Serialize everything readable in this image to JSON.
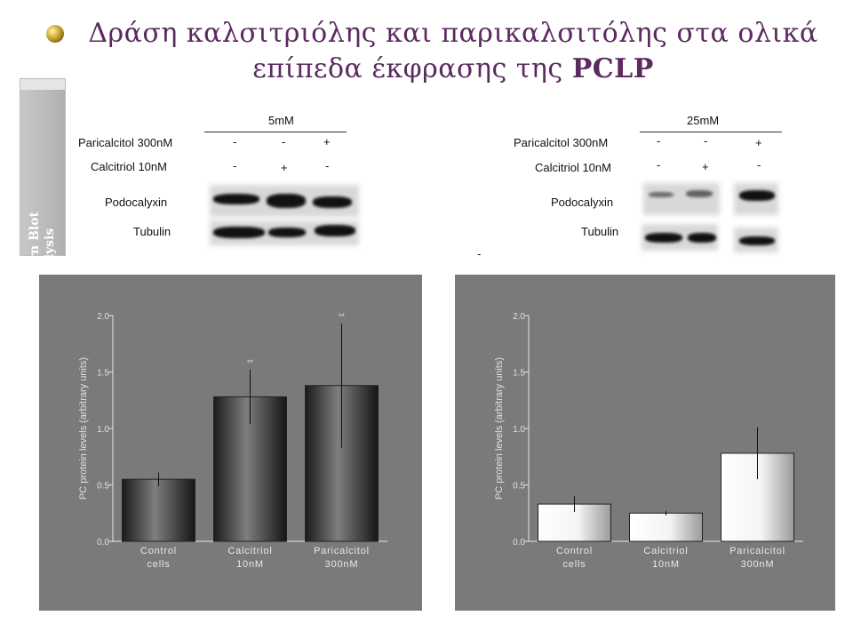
{
  "slide": {
    "title_line1": "Δράση καλσιτριόλης και παρικαλσιτόλης στα ολικά",
    "title_line2_pre": "επίπεδα έκφρασης της ",
    "title_line2_bold": "PCLP",
    "side_label_line1": "Western Blot",
    "side_label_line2": "Analysis",
    "colors": {
      "title": "#5b2a5e",
      "panel_bg": "#7a7a7a",
      "side_tab": "#b8b8b8"
    }
  },
  "blots": [
    {
      "concentration": "5mM",
      "rows": [
        {
          "label": "Paricalcitol 300nM",
          "signs": [
            "-",
            "-",
            "+"
          ]
        },
        {
          "label": "Calcitriol 10nM",
          "signs": [
            "-",
            "+",
            "-"
          ]
        }
      ],
      "bands": [
        "Podocalyxin",
        "Tubulin"
      ]
    },
    {
      "concentration": "25mM",
      "rows": [
        {
          "label": "Paricalcitol 300nM",
          "signs": [
            "-",
            "-",
            "+"
          ]
        },
        {
          "label": "Calcitriol 10nM",
          "signs": [
            "-",
            "+",
            "-"
          ]
        }
      ],
      "bands": [
        "Podocalyxin",
        "Tubulin"
      ],
      "stray_mark": "-"
    }
  ],
  "chart_data": [
    {
      "type": "bar",
      "categories": [
        [
          "Control",
          "cells"
        ],
        [
          "Calcitriol",
          "10nM"
        ],
        [
          "Paricalcitol",
          "300nM"
        ]
      ],
      "values": [
        0.55,
        1.28,
        1.38
      ],
      "errors": [
        0.06,
        0.24,
        0.55
      ],
      "annotations": [
        "",
        "**",
        "**"
      ],
      "ylabel": "PC protein levels (arbitrary units)",
      "ylim": [
        0,
        2.0
      ],
      "yticks": [
        "0.0",
        "0.5",
        "1.0",
        "1.5",
        "2.0"
      ],
      "bar_style": "dark",
      "grid": false
    },
    {
      "type": "bar",
      "categories": [
        [
          "Control",
          "cells"
        ],
        [
          "Calcitriol",
          "10nM"
        ],
        [
          "Paricalcitol",
          "300nM"
        ]
      ],
      "values": [
        0.33,
        0.25,
        0.78
      ],
      "errors": [
        0.07,
        0.02,
        0.23
      ],
      "annotations": [
        "",
        "",
        ""
      ],
      "ylabel": "PC protein levels (arbitrary units)",
      "ylim": [
        0,
        2.0
      ],
      "yticks": [
        "0.0",
        "0.5",
        "1.0",
        "1.5",
        "2.0"
      ],
      "bar_style": "light",
      "grid": false
    }
  ]
}
